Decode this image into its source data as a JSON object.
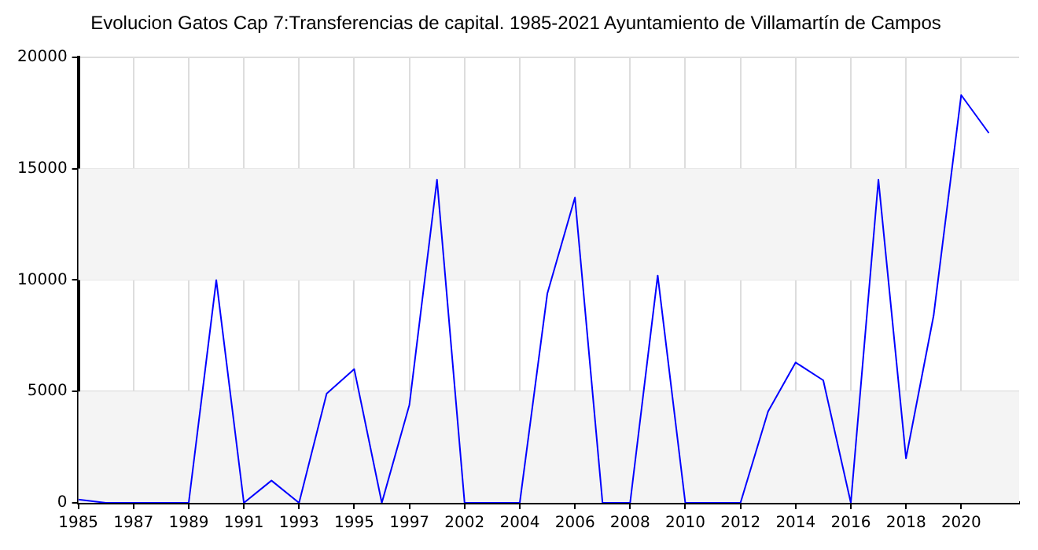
{
  "chart_data": {
    "type": "line",
    "title": "Evolucion Gatos Cap 7:Transferencias de capital. 1985-2021 Ayuntamiento de Villamartín de Campos",
    "categories": [
      "1985",
      null,
      "1987",
      null,
      "1989",
      null,
      "1991",
      null,
      "1993",
      null,
      "1995",
      null,
      "1997",
      null,
      "2002",
      null,
      "2004",
      null,
      "2006",
      null,
      "2008",
      null,
      "2010",
      null,
      "2012",
      null,
      "2014",
      null,
      "2016",
      null,
      "2018",
      null,
      "2020",
      null
    ],
    "series": [
      {
        "color": "#0000ff",
        "values": [
          150,
          0,
          0,
          0,
          0,
          10000,
          0,
          1000,
          0,
          4900,
          6000,
          0,
          4400,
          14500,
          0,
          0,
          0,
          9400,
          13700,
          0,
          0,
          10200,
          0,
          0,
          0,
          4100,
          6300,
          5500,
          0,
          14500,
          2000,
          8400,
          18300,
          16600
        ]
      }
    ],
    "ylim": [
      0,
      20000
    ],
    "yticks": [
      0,
      5000,
      10000,
      15000,
      20000
    ],
    "grid": true,
    "legend": false,
    "marker": "none",
    "line_style": "solid"
  }
}
